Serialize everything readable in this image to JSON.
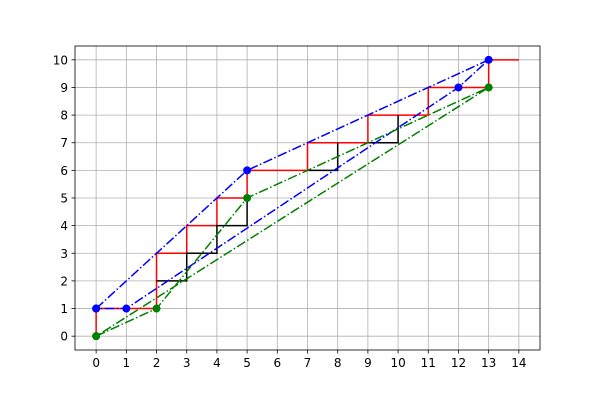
{
  "chart_data": {
    "type": "line",
    "xlim": [
      -0.7,
      14.7
    ],
    "ylim": [
      -0.5,
      10.5
    ],
    "xticks": [
      0,
      1,
      2,
      3,
      4,
      5,
      6,
      7,
      8,
      9,
      10,
      11,
      12,
      13,
      14
    ],
    "yticks": [
      0,
      1,
      2,
      3,
      4,
      5,
      6,
      7,
      8,
      9,
      10
    ],
    "grid": true,
    "series": [
      {
        "color": "#ff0000",
        "linestyle": "solid",
        "marker": false,
        "x": [
          0,
          0,
          2,
          2,
          3,
          3,
          4,
          4,
          5,
          5,
          7,
          7,
          9,
          9,
          11,
          11,
          13,
          13,
          14
        ],
        "values": [
          0,
          1,
          1,
          3,
          3,
          4,
          4,
          5,
          5,
          6,
          6,
          7,
          7,
          8,
          8,
          9,
          9,
          10,
          10
        ]
      },
      {
        "color": "#000000",
        "linestyle": "solid",
        "marker": false,
        "x": [
          2,
          3,
          3,
          4,
          4,
          5,
          5,
          null,
          7,
          8,
          8,
          null,
          9,
          10,
          10
        ],
        "values": [
          2,
          2,
          3,
          3,
          4,
          4,
          5,
          null,
          6,
          6,
          7,
          null,
          7,
          7,
          8
        ]
      },
      {
        "color": "#0000ff",
        "linestyle": "dashdot",
        "marker": true,
        "x": [
          0,
          5,
          13,
          12,
          1,
          0
        ],
        "values": [
          1,
          6,
          10,
          9,
          1,
          1
        ]
      },
      {
        "color": "#008000",
        "linestyle": "dashdot",
        "marker": true,
        "x": [
          0,
          2,
          5,
          13,
          0
        ],
        "values": [
          0,
          1,
          5,
          9,
          0
        ]
      }
    ]
  }
}
